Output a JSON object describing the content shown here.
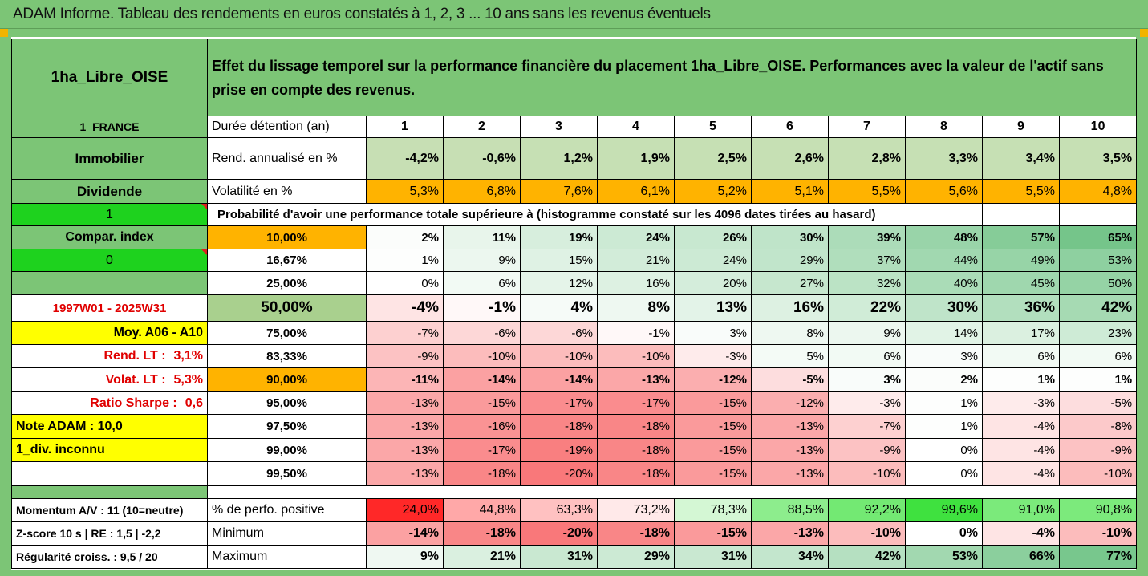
{
  "title": "ADAM Informe. Tableau des rendements en euros constatés à 1, 2, 3 ... 10 ans sans les revenus éventuels",
  "asset_name": "1ha_Libre_OISE",
  "description": "Effet du lissage temporel sur la performance financière du placement 1ha_Libre_OISE. Performances avec la valeur de l'actif sans prise en compte des revenus.",
  "side": {
    "country": "1_FRANCE",
    "category": "Immobilier",
    "dividend": "Dividende",
    "dividend_value": "1",
    "compar_index": "Compar. index",
    "compar_index_value": "0",
    "period": "1997W01 - 2025W31",
    "moy": "Moy. A06 - A10",
    "rend_lt_label": "Rend. LT :",
    "rend_lt_value": "3,1%",
    "volat_lt_label": "Volat. LT :",
    "volat_lt_value": "5,3%",
    "sharpe_label": "Ratio Sharpe :",
    "sharpe_value": "0,6",
    "note": "Note ADAM : 10,0",
    "div": "1_div. inconnu",
    "momentum": "Momentum A/V : 11 (10=neutre)",
    "zscore": "Z-score 10 s  |  RE : 1,5  |  -2,2",
    "regularite": "Régularité croiss. : 9,5 / 20"
  },
  "labels": {
    "duree": "Durée détention (an)",
    "rend": "Rend. annualisé en %",
    "volat": "Volatilité en %",
    "proba": "Probabilité d'avoir une performance totale supérieure à (histogramme constaté sur les 4096 dates tirées au hasard)",
    "perf_pos": "% de perfo. positive",
    "minimum": "Minimum",
    "maximum": "Maximum"
  },
  "years": [
    "1",
    "2",
    "3",
    "4",
    "5",
    "6",
    "7",
    "8",
    "9",
    "10"
  ],
  "rend": [
    "-4,2%",
    "-0,6%",
    "1,2%",
    "1,9%",
    "2,5%",
    "2,6%",
    "2,8%",
    "3,3%",
    "3,4%",
    "3,5%"
  ],
  "volat": [
    "5,3%",
    "6,8%",
    "7,6%",
    "6,1%",
    "5,2%",
    "5,1%",
    "5,5%",
    "5,6%",
    "5,5%",
    "4,8%"
  ],
  "percentiles": [
    {
      "p": "10,00%",
      "values": [
        "2%",
        "11%",
        "19%",
        "24%",
        "26%",
        "30%",
        "39%",
        "48%",
        "57%",
        "65%"
      ]
    },
    {
      "p": "16,67%",
      "values": [
        "1%",
        "9%",
        "15%",
        "21%",
        "24%",
        "29%",
        "37%",
        "44%",
        "49%",
        "53%"
      ]
    },
    {
      "p": "25,00%",
      "values": [
        "0%",
        "6%",
        "12%",
        "16%",
        "20%",
        "27%",
        "32%",
        "40%",
        "45%",
        "50%"
      ]
    },
    {
      "p": "50,00%",
      "values": [
        "-4%",
        "-1%",
        "4%",
        "8%",
        "13%",
        "16%",
        "22%",
        "30%",
        "36%",
        "42%"
      ]
    },
    {
      "p": "75,00%",
      "values": [
        "-7%",
        "-6%",
        "-6%",
        "-1%",
        "3%",
        "8%",
        "9%",
        "14%",
        "17%",
        "23%"
      ]
    },
    {
      "p": "83,33%",
      "values": [
        "-9%",
        "-10%",
        "-10%",
        "-10%",
        "-3%",
        "5%",
        "6%",
        "3%",
        "6%",
        "6%"
      ]
    },
    {
      "p": "90,00%",
      "values": [
        "-11%",
        "-14%",
        "-14%",
        "-13%",
        "-12%",
        "-5%",
        "3%",
        "2%",
        "1%",
        "1%"
      ]
    },
    {
      "p": "95,00%",
      "values": [
        "-13%",
        "-15%",
        "-17%",
        "-17%",
        "-15%",
        "-12%",
        "-3%",
        "1%",
        "-3%",
        "-5%"
      ]
    },
    {
      "p": "97,50%",
      "values": [
        "-13%",
        "-16%",
        "-18%",
        "-18%",
        "-15%",
        "-13%",
        "-7%",
        "1%",
        "-4%",
        "-8%"
      ]
    },
    {
      "p": "99,00%",
      "values": [
        "-13%",
        "-17%",
        "-19%",
        "-18%",
        "-15%",
        "-13%",
        "-9%",
        "0%",
        "-4%",
        "-9%"
      ]
    },
    {
      "p": "99,50%",
      "values": [
        "-13%",
        "-18%",
        "-20%",
        "-18%",
        "-15%",
        "-13%",
        "-10%",
        "0%",
        "-4%",
        "-10%"
      ]
    }
  ],
  "perf_pos": [
    "24,0%",
    "44,8%",
    "63,3%",
    "73,2%",
    "78,3%",
    "88,5%",
    "92,2%",
    "99,6%",
    "91,0%",
    "90,8%"
  ],
  "minimum": [
    "-14%",
    "-18%",
    "-20%",
    "-18%",
    "-15%",
    "-13%",
    "-10%",
    "0%",
    "-4%",
    "-10%"
  ],
  "maximum": [
    "9%",
    "21%",
    "31%",
    "29%",
    "31%",
    "34%",
    "42%",
    "53%",
    "66%",
    "77%"
  ],
  "colors": {
    "header_green": "#7cc576",
    "bright_green": "#1ed21e",
    "yellow": "#ffff00",
    "orange": "#ffb300",
    "positive_max": "#63be7b",
    "negative_max": "#f8696b",
    "neutral": "#ffffff"
  }
}
